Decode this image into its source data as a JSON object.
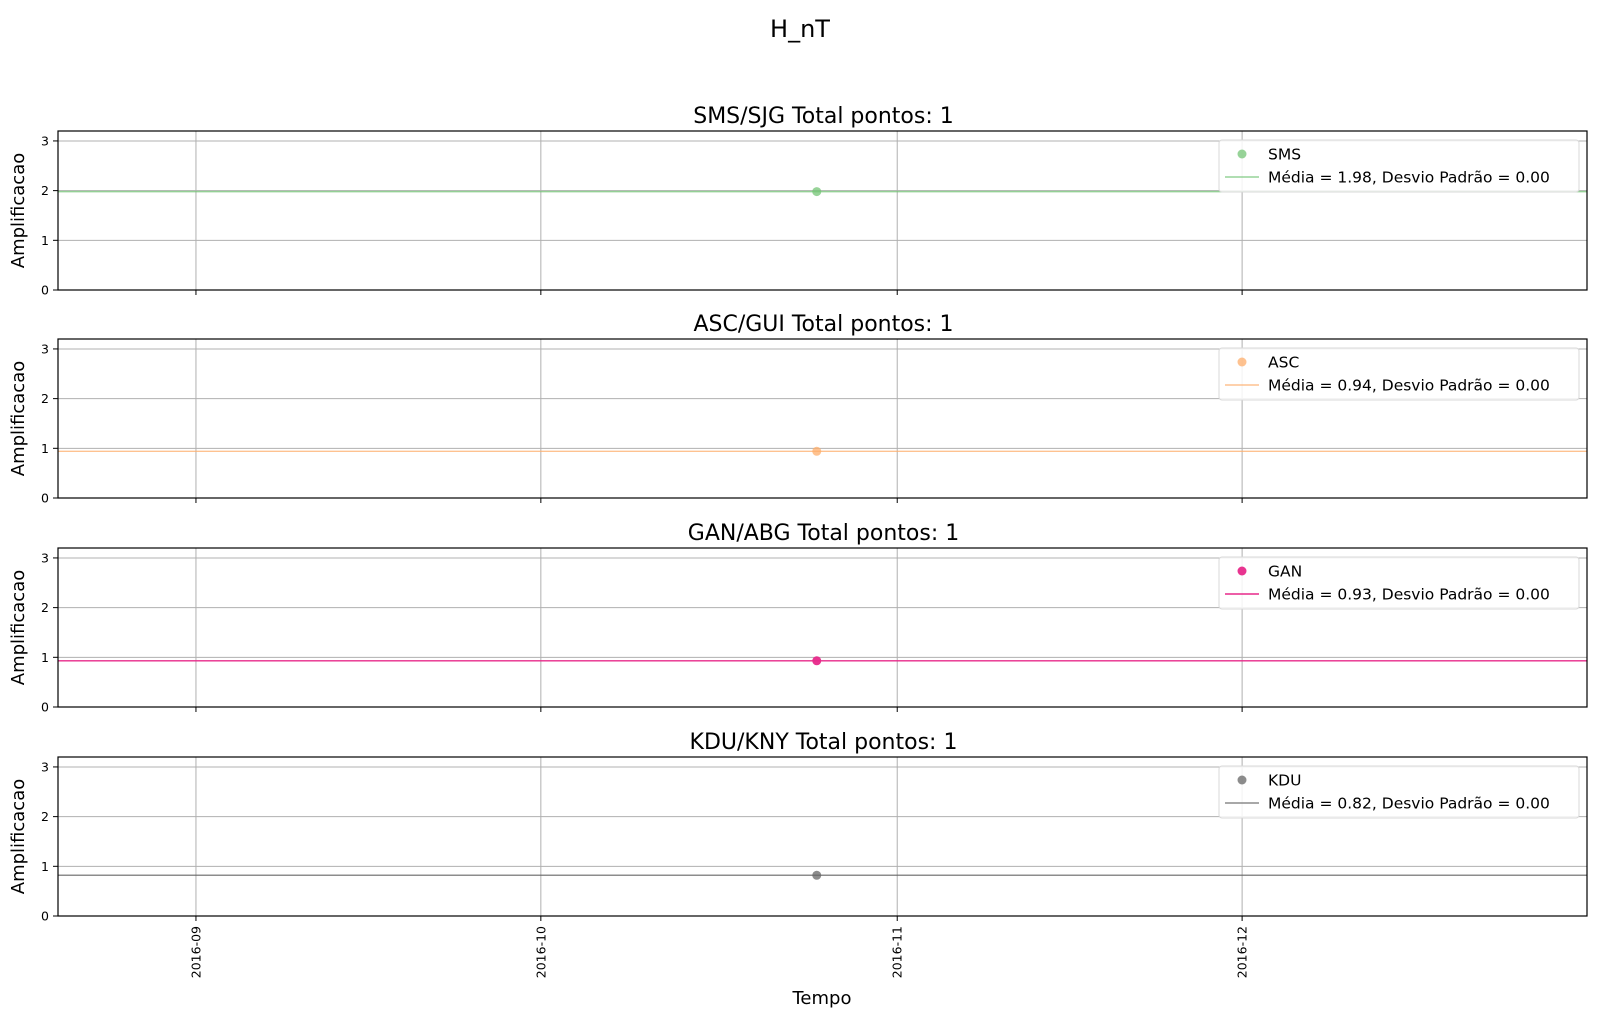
{
  "figure": {
    "title": "H_nT",
    "xlabel": "Tempo"
  },
  "chart_data": [
    {
      "type": "scatter",
      "title": "SMS/SJG  Total pontos: 1",
      "xlabel": "",
      "ylabel": "Amplificacao",
      "ylim": [
        0,
        3.2
      ],
      "yticks": [
        0,
        1,
        2,
        3
      ],
      "xlim": [
        "2016-08-20",
        "2016-12-31"
      ],
      "xticks": [
        "2016-09",
        "2016-10",
        "2016-11",
        "2016-12"
      ],
      "xtick_labels_visible": false,
      "grid": true,
      "legend_position": "upper right",
      "series": [
        {
          "name": "SMS",
          "color": "#74c476",
          "x": [
            "2016-10-25"
          ],
          "y": [
            1.98
          ]
        }
      ],
      "mean_line": {
        "label": "Média = 1.98, Desvio Padrão = 0.00",
        "value": 1.98,
        "color": "#74c476"
      }
    },
    {
      "type": "scatter",
      "title": "ASC/GUI  Total pontos: 1",
      "xlabel": "",
      "ylabel": "Amplificacao",
      "ylim": [
        0,
        3.2
      ],
      "yticks": [
        0,
        1,
        2,
        3
      ],
      "xlim": [
        "2016-08-20",
        "2016-12-31"
      ],
      "xticks": [
        "2016-09",
        "2016-10",
        "2016-11",
        "2016-12"
      ],
      "xtick_labels_visible": false,
      "grid": true,
      "legend_position": "upper right",
      "series": [
        {
          "name": "ASC",
          "color": "#fdae6b",
          "x": [
            "2016-10-25"
          ],
          "y": [
            0.94
          ]
        }
      ],
      "mean_line": {
        "label": "Média = 0.94, Desvio Padrão = 0.00",
        "value": 0.94,
        "color": "#fdae6b"
      }
    },
    {
      "type": "scatter",
      "title": "GAN/ABG  Total pontos: 1",
      "xlabel": "",
      "ylabel": "Amplificacao",
      "ylim": [
        0,
        3.2
      ],
      "yticks": [
        0,
        1,
        2,
        3
      ],
      "xlim": [
        "2016-08-20",
        "2016-12-31"
      ],
      "xticks": [
        "2016-09",
        "2016-10",
        "2016-11",
        "2016-12"
      ],
      "xtick_labels_visible": false,
      "grid": true,
      "legend_position": "upper right",
      "series": [
        {
          "name": "GAN",
          "color": "#e7298a",
          "x": [
            "2016-10-25"
          ],
          "y": [
            0.93
          ]
        }
      ],
      "mean_line": {
        "label": "Média = 0.93, Desvio Padrão = 0.00",
        "value": 0.93,
        "color": "#e7298a"
      }
    },
    {
      "type": "scatter",
      "title": "KDU/KNY  Total pontos: 1",
      "xlabel": "",
      "ylabel": "Amplificacao",
      "ylim": [
        0,
        3.2
      ],
      "yticks": [
        0,
        1,
        2,
        3
      ],
      "xlim": [
        "2016-08-20",
        "2016-12-31"
      ],
      "xticks": [
        "2016-09",
        "2016-10",
        "2016-11",
        "2016-12"
      ],
      "xtick_labels_visible": true,
      "grid": true,
      "legend_position": "upper right",
      "series": [
        {
          "name": "KDU",
          "color": "#666666",
          "x": [
            "2016-10-25"
          ],
          "y": [
            0.82
          ]
        }
      ],
      "mean_line": {
        "label": "Média = 0.82, Desvio Padrão = 0.00",
        "value": 0.82,
        "color": "#666666"
      }
    }
  ]
}
